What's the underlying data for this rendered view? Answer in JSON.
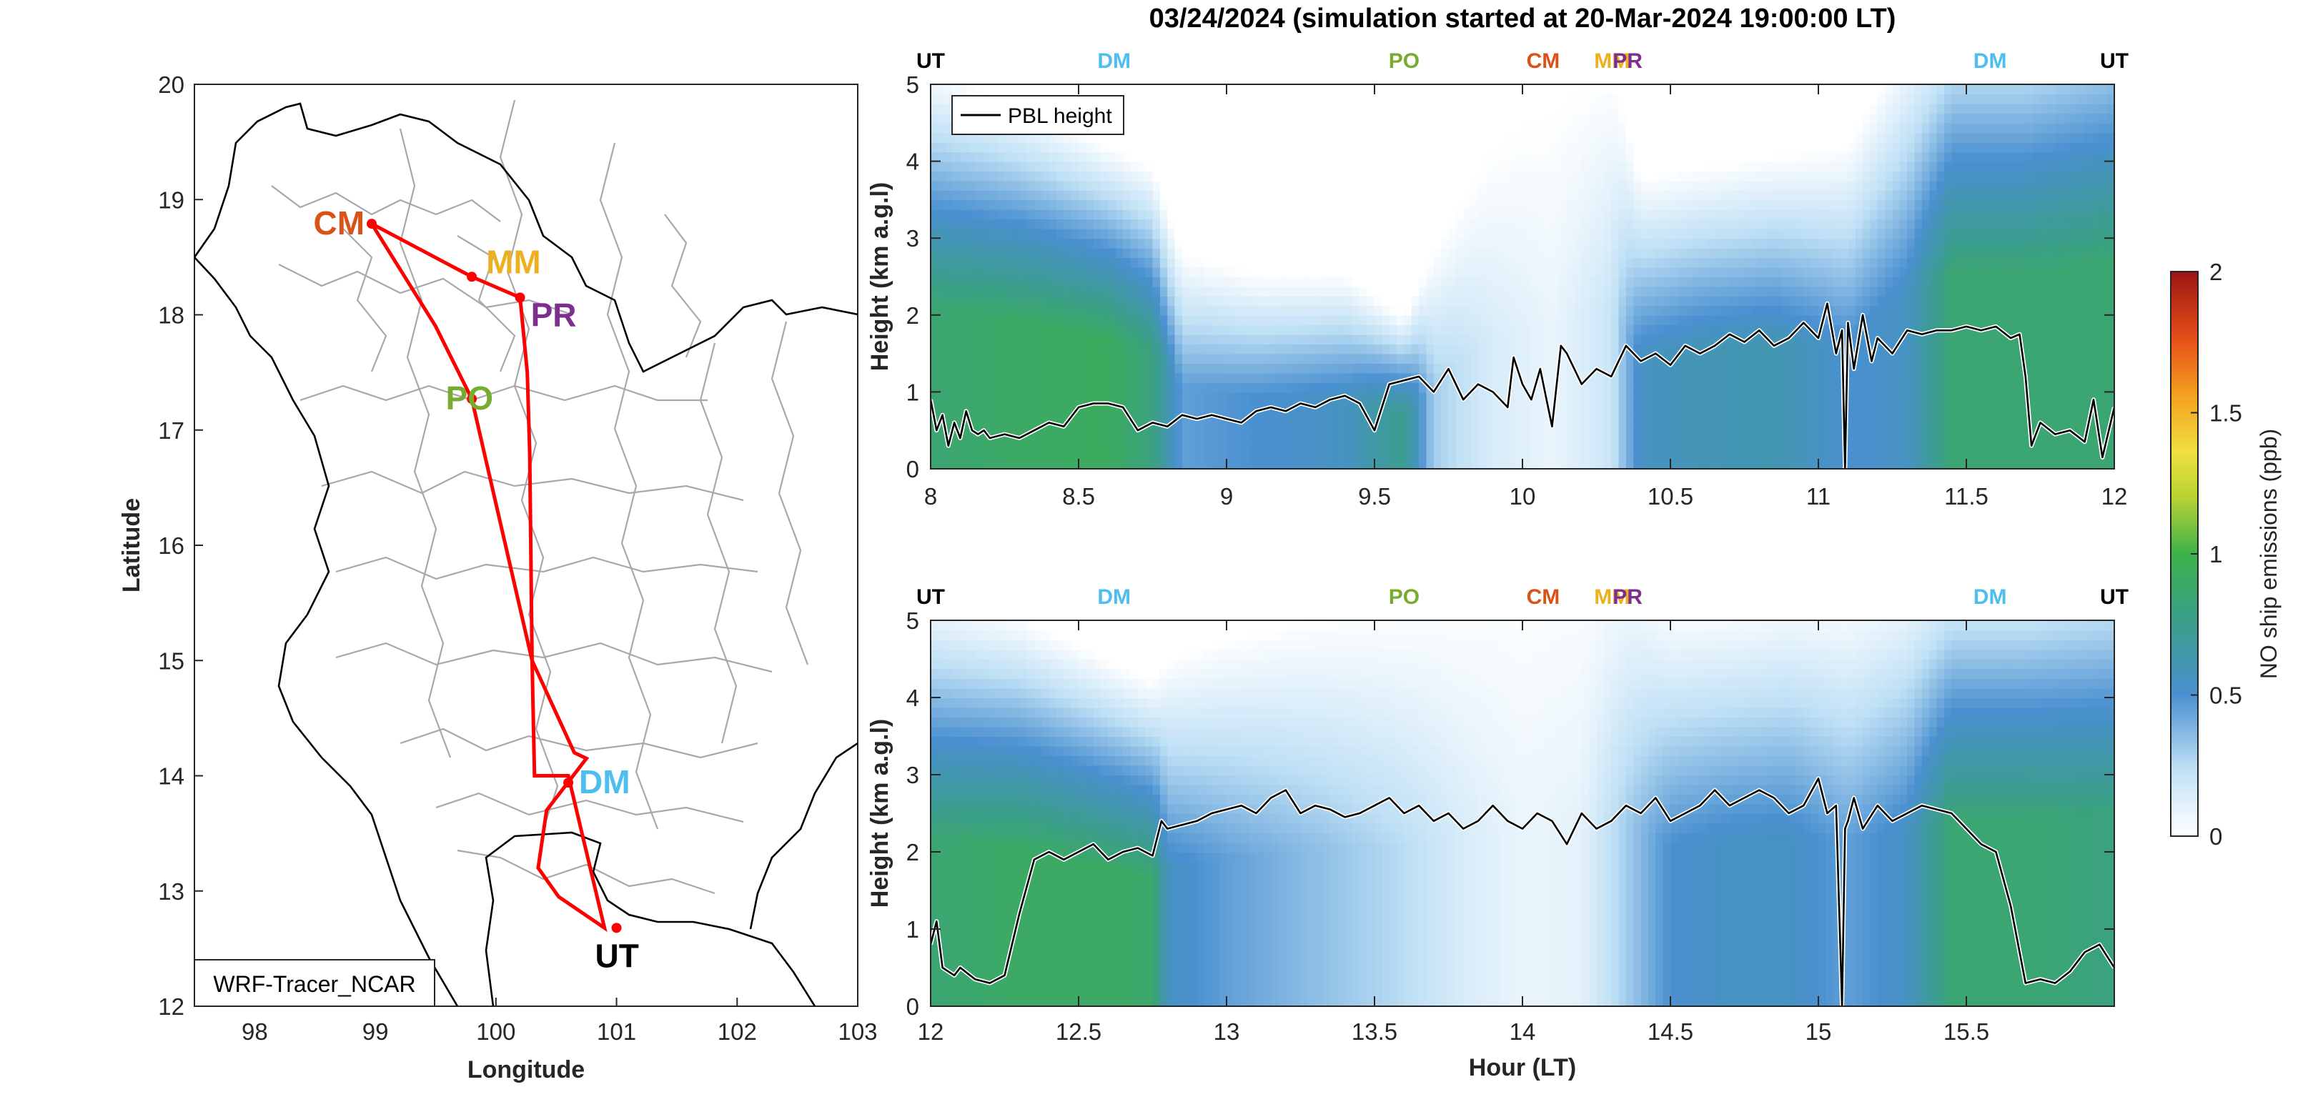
{
  "title": "03/24/2024 (simulation started at 20-Mar-2024 19:00:00 LT)",
  "colors": {
    "UT": "#000000",
    "DM": "#4DBEEE",
    "PO": "#77AC30",
    "CM": "#D95319",
    "MM": "#EDB120",
    "PR": "#7E2F8E",
    "route": "#FF0000",
    "borders": "#A8A8A8",
    "coast": "#000000"
  },
  "map": {
    "xlabel": "Longitude",
    "ylabel": "Latitude",
    "xlim": [
      97.5,
      103
    ],
    "ylim": [
      12,
      20
    ],
    "xticks": [
      "98",
      "99",
      "100",
      "101",
      "102",
      "103"
    ],
    "yticks": [
      "12",
      "13",
      "14",
      "15",
      "16",
      "17",
      "18",
      "19",
      "20"
    ],
    "label_box": "WRF-Tracer_NCAR",
    "sites": [
      {
        "code": "CM",
        "lon": 98.97,
        "lat": 18.79
      },
      {
        "code": "MM",
        "lon": 99.8,
        "lat": 18.33
      },
      {
        "code": "PR",
        "lon": 100.2,
        "lat": 18.15
      },
      {
        "code": "PO",
        "lon": 99.8,
        "lat": 17.27
      },
      {
        "code": "DM",
        "lon": 100.6,
        "lat": 13.94
      },
      {
        "code": "UT",
        "lon": 101.0,
        "lat": 12.68
      }
    ],
    "route": [
      [
        98.97,
        18.79
      ],
      [
        99.8,
        18.33
      ],
      [
        100.2,
        18.15
      ],
      [
        100.26,
        17.5
      ],
      [
        100.28,
        16.8
      ],
      [
        100.3,
        15.0
      ],
      [
        100.32,
        14.0
      ],
      [
        100.6,
        14.0
      ],
      [
        100.9,
        12.68
      ],
      [
        100.52,
        12.95
      ],
      [
        100.35,
        13.2
      ],
      [
        100.42,
        13.7
      ],
      [
        100.75,
        14.15
      ],
      [
        100.65,
        14.2
      ],
      [
        100.3,
        15.0
      ],
      [
        99.8,
        17.27
      ],
      [
        99.5,
        17.9
      ],
      [
        98.97,
        18.79
      ]
    ]
  },
  "colorbar": {
    "label": "NO ship emissions (ppb)",
    "ticks": [
      "0",
      "0.5",
      "1",
      "1.5",
      "2"
    ],
    "range": [
      0,
      2
    ]
  },
  "chart_data": [
    {
      "type": "heatmap",
      "xlim": [
        8,
        12
      ],
      "ylim": [
        0,
        5
      ],
      "xticks": [
        "8",
        "8.5",
        "9",
        "9.5",
        "10",
        "10.5",
        "11",
        "11.5",
        "12"
      ],
      "yticks": [
        "0",
        "1",
        "2",
        "3",
        "4",
        "5"
      ],
      "ylabel": "Height (km a.g.l)",
      "xlabel": "",
      "legend": "PBL height",
      "legend_position": "top-left",
      "top_sites": [
        {
          "code": "UT",
          "hour": 8.0
        },
        {
          "code": "DM",
          "hour": 8.62
        },
        {
          "code": "PO",
          "hour": 9.6
        },
        {
          "code": "CM",
          "hour": 10.07
        },
        {
          "code": "MM",
          "hour": 10.3
        },
        {
          "code": "PR",
          "hour": 10.42
        },
        {
          "code": "DM",
          "hour": 11.58
        },
        {
          "code": "UT",
          "hour": 12.0
        }
      ],
      "field": {
        "x": [
          8.0,
          8.3,
          8.6,
          8.75,
          8.85,
          9.1,
          9.4,
          9.6,
          9.7,
          9.9,
          10.1,
          10.3,
          10.4,
          10.6,
          10.85,
          11.1,
          11.3,
          11.45,
          11.7,
          12.0
        ],
        "surface_ppb": [
          0.85,
          0.9,
          0.92,
          0.8,
          0.45,
          0.5,
          0.55,
          0.75,
          0.3,
          0.15,
          0.08,
          0.2,
          0.55,
          0.6,
          0.62,
          0.5,
          0.55,
          0.85,
          0.85,
          0.85
        ],
        "depth_km": [
          3.5,
          3.2,
          2.8,
          2.6,
          1.8,
          1.6,
          1.6,
          1.2,
          1.8,
          2.8,
          3.2,
          3.5,
          2.5,
          2.6,
          2.7,
          2.8,
          3.8,
          4.2,
          4.2,
          4.5
        ]
      },
      "series": [
        {
          "name": "PBL height",
          "x": [
            8.0,
            8.02,
            8.04,
            8.06,
            8.08,
            8.1,
            8.12,
            8.14,
            8.16,
            8.18,
            8.2,
            8.25,
            8.3,
            8.35,
            8.4,
            8.45,
            8.5,
            8.55,
            8.6,
            8.65,
            8.7,
            8.75,
            8.8,
            8.85,
            8.9,
            8.95,
            9.0,
            9.05,
            9.1,
            9.15,
            9.2,
            9.25,
            9.3,
            9.35,
            9.4,
            9.45,
            9.5,
            9.55,
            9.6,
            9.65,
            9.7,
            9.75,
            9.8,
            9.85,
            9.9,
            9.95,
            9.97,
            10.0,
            10.03,
            10.06,
            10.1,
            10.13,
            10.15,
            10.2,
            10.25,
            10.3,
            10.35,
            10.4,
            10.45,
            10.5,
            10.55,
            10.6,
            10.65,
            10.7,
            10.75,
            10.8,
            10.85,
            10.9,
            10.95,
            11.0,
            11.03,
            11.06,
            11.08,
            11.09,
            11.1,
            11.12,
            11.15,
            11.18,
            11.2,
            11.25,
            11.3,
            11.35,
            11.4,
            11.45,
            11.5,
            11.55,
            11.6,
            11.65,
            11.68,
            11.7,
            11.72,
            11.75,
            11.8,
            11.85,
            11.9,
            11.93,
            11.96,
            12.0
          ],
          "y": [
            0.9,
            0.5,
            0.7,
            0.3,
            0.6,
            0.4,
            0.75,
            0.5,
            0.45,
            0.5,
            0.4,
            0.45,
            0.4,
            0.5,
            0.6,
            0.55,
            0.8,
            0.85,
            0.85,
            0.8,
            0.5,
            0.6,
            0.55,
            0.7,
            0.65,
            0.7,
            0.65,
            0.6,
            0.75,
            0.8,
            0.75,
            0.85,
            0.8,
            0.9,
            0.95,
            0.85,
            0.5,
            1.1,
            1.15,
            1.2,
            1.0,
            1.3,
            0.9,
            1.1,
            1.0,
            0.8,
            1.45,
            1.1,
            0.9,
            1.3,
            0.55,
            1.6,
            1.5,
            1.1,
            1.3,
            1.2,
            1.6,
            1.4,
            1.5,
            1.35,
            1.6,
            1.5,
            1.6,
            1.75,
            1.65,
            1.8,
            1.6,
            1.7,
            1.9,
            1.7,
            2.15,
            1.5,
            1.8,
            0.0,
            1.9,
            1.3,
            2.0,
            1.4,
            1.7,
            1.5,
            1.8,
            1.75,
            1.8,
            1.8,
            1.85,
            1.8,
            1.85,
            1.7,
            1.75,
            1.2,
            0.3,
            0.6,
            0.45,
            0.5,
            0.35,
            0.9,
            0.15,
            0.8
          ]
        }
      ]
    },
    {
      "type": "heatmap",
      "xlim": [
        12,
        16
      ],
      "ylim": [
        0,
        5
      ],
      "xticks": [
        "12",
        "12.5",
        "13",
        "13.5",
        "14",
        "14.5",
        "15",
        "15.5"
      ],
      "yticks": [
        "0",
        "1",
        "2",
        "3",
        "4",
        "5"
      ],
      "ylabel": "Height (km a.g.l)",
      "xlabel": "Hour (LT)",
      "top_sites": [
        {
          "code": "UT",
          "hour": 12.0
        },
        {
          "code": "DM",
          "hour": 12.62
        },
        {
          "code": "PO",
          "hour": 13.6
        },
        {
          "code": "CM",
          "hour": 14.07
        },
        {
          "code": "MM",
          "hour": 14.3
        },
        {
          "code": "PR",
          "hour": 14.42
        },
        {
          "code": "DM",
          "hour": 15.58
        },
        {
          "code": "UT",
          "hour": 16.0
        }
      ],
      "field": {
        "x": [
          12.0,
          12.3,
          12.6,
          12.75,
          12.8,
          13.0,
          13.3,
          13.6,
          13.8,
          14.0,
          14.2,
          14.35,
          14.5,
          14.7,
          14.9,
          15.1,
          15.3,
          15.45,
          15.7,
          16.0
        ],
        "surface_ppb": [
          0.85,
          0.9,
          0.9,
          0.88,
          0.55,
          0.45,
          0.35,
          0.25,
          0.15,
          0.08,
          0.1,
          0.3,
          0.5,
          0.55,
          0.55,
          0.45,
          0.55,
          0.85,
          0.85,
          0.8
        ],
        "depth_km": [
          3.6,
          3.4,
          3.0,
          2.8,
          3.0,
          3.2,
          3.4,
          3.5,
          3.6,
          3.8,
          4.0,
          4.0,
          3.5,
          3.5,
          3.6,
          3.6,
          3.8,
          4.0,
          4.0,
          4.2
        ]
      },
      "series": [
        {
          "name": "PBL height",
          "x": [
            12.0,
            12.02,
            12.04,
            12.06,
            12.08,
            12.1,
            12.15,
            12.2,
            12.25,
            12.3,
            12.35,
            12.4,
            12.45,
            12.5,
            12.55,
            12.6,
            12.65,
            12.7,
            12.75,
            12.78,
            12.8,
            12.85,
            12.9,
            12.95,
            13.0,
            13.05,
            13.1,
            13.15,
            13.2,
            13.25,
            13.3,
            13.35,
            13.4,
            13.45,
            13.5,
            13.55,
            13.6,
            13.65,
            13.7,
            13.75,
            13.8,
            13.85,
            13.9,
            13.95,
            14.0,
            14.05,
            14.1,
            14.15,
            14.2,
            14.25,
            14.3,
            14.35,
            14.4,
            14.45,
            14.5,
            14.55,
            14.6,
            14.65,
            14.7,
            14.75,
            14.8,
            14.85,
            14.9,
            14.95,
            15.0,
            15.03,
            15.06,
            15.08,
            15.09,
            15.1,
            15.12,
            15.15,
            15.2,
            15.25,
            15.3,
            15.35,
            15.4,
            15.45,
            15.5,
            15.55,
            15.6,
            15.65,
            15.7,
            15.75,
            15.8,
            15.85,
            15.9,
            15.95,
            16.0
          ],
          "y": [
            0.8,
            1.1,
            0.5,
            0.45,
            0.4,
            0.5,
            0.35,
            0.3,
            0.4,
            1.2,
            1.9,
            2.0,
            1.9,
            2.0,
            2.1,
            1.9,
            2.0,
            2.05,
            1.95,
            2.4,
            2.3,
            2.35,
            2.4,
            2.5,
            2.55,
            2.6,
            2.5,
            2.7,
            2.8,
            2.5,
            2.6,
            2.55,
            2.45,
            2.5,
            2.6,
            2.7,
            2.5,
            2.6,
            2.4,
            2.5,
            2.3,
            2.4,
            2.6,
            2.4,
            2.3,
            2.5,
            2.4,
            2.1,
            2.5,
            2.3,
            2.4,
            2.6,
            2.5,
            2.7,
            2.4,
            2.5,
            2.6,
            2.8,
            2.6,
            2.7,
            2.8,
            2.7,
            2.5,
            2.6,
            2.95,
            2.5,
            2.6,
            0.0,
            2.3,
            2.4,
            2.7,
            2.3,
            2.6,
            2.4,
            2.5,
            2.6,
            2.55,
            2.5,
            2.3,
            2.1,
            2.0,
            1.3,
            0.3,
            0.35,
            0.3,
            0.45,
            0.7,
            0.8,
            0.5
          ]
        }
      ]
    }
  ]
}
